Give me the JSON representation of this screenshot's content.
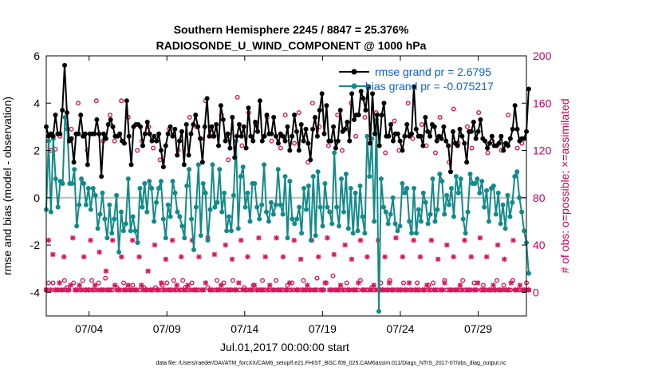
{
  "chart_data": {
    "type": "line",
    "title_line1": "Southern Hemisphere 2245 / 8847 = 25.376%",
    "title_line2": "RADIOSONDE_U_WIND_COMPONENT @ 1000 hPa",
    "ylabel_left": "rmse and bias (model - observation)",
    "ylabel_right": "# of obs: o=possible; ×=assimilated",
    "xlabel": "Jul.01,2017 00:00:00 start",
    "footnote": "data file: /Users/raeder/DAI/ATM_forcXX/CAM6_setup/f.e21.FHIST_BGC.f09_025.CAM6assim.011/Diags_NTrS_2017-07/obs_diag_output.nc",
    "x_tick_labels": [
      "07/04",
      "07/09",
      "07/14",
      "07/19",
      "07/24",
      "07/29"
    ],
    "x_tick_days": [
      4,
      9,
      14,
      19,
      24,
      29
    ],
    "xlim_days": [
      1.25,
      32.1
    ],
    "ylim_left": [
      -5,
      6
    ],
    "yticks_left": [
      -4,
      -2,
      0,
      2,
      4,
      6
    ],
    "ylim_right": [
      -20,
      200
    ],
    "yticks_right": [
      0,
      40,
      80,
      120,
      160,
      200
    ],
    "legend_position": "top-right",
    "colors": {
      "rmse": "#000000",
      "bias": "#138a8a",
      "obs": "#d6175e",
      "zero": "#bdbdbd"
    },
    "series": [
      {
        "name": "rmse grand pr = 2.6795",
        "axis": "left",
        "values": [
          3.0,
          2.6,
          2.7,
          2.6,
          3.5,
          2.7,
          2.7,
          3.7,
          5.6,
          3.6,
          2.4,
          2.5,
          1.5,
          2.7,
          2.7,
          3.5,
          2.6,
          2.7,
          1.4,
          2.7,
          2.7,
          2.7,
          3.3,
          2.7,
          0.9,
          2.7,
          2.5,
          3.1,
          3.3,
          3.0,
          2.6,
          2.6,
          2.7,
          2.4,
          2.3,
          4.1,
          2.6,
          1.4,
          3.0,
          3.1,
          3.1,
          3.0,
          2.2,
          2.7,
          3.2,
          2.7,
          2.4,
          2.6,
          2.4,
          2.7,
          2.0,
          1.3,
          2.2,
          2.7,
          3.0,
          2.6,
          2.9,
          1.8,
          2.4,
          2.8,
          1.4,
          3.1,
          1.8,
          2.7,
          3.1,
          3.5,
          3.0,
          2.5,
          1.5,
          3.0,
          4.2,
          2.6,
          3.0,
          2.6,
          3.1,
          2.2,
          3.9,
          3.3,
          2.4,
          2.7,
          2.1,
          3.4,
          1.7,
          2.6,
          3.1,
          2.6,
          3.0,
          2.1,
          3.8,
          2.6,
          2.4,
          3.2,
          2.8,
          4.1,
          2.4,
          2.6,
          3.5,
          2.7,
          2.7,
          3.4,
          2.6,
          2.3,
          2.7,
          2.6,
          2.4,
          3.0,
          2.0,
          2.6,
          3.5,
          2.8,
          2.0,
          3.1,
          2.4,
          2.9,
          2.3,
          1.6,
          2.9,
          3.4,
          2.6,
          3.7,
          4.4,
          2.7,
          3.9,
          2.4,
          2.4,
          3.0,
          2.1,
          2.4,
          3.7,
          2.8,
          2.9,
          3.2,
          2.4,
          4.4,
          3.3,
          3.5,
          3.5,
          4.5,
          4.2,
          3.7,
          4.7,
          2.3,
          4.4,
          2.7,
          3.5,
          2.2,
          3.5,
          4.0,
          2.6,
          2.6,
          3.1,
          2.4,
          2.7,
          2.7,
          2.4,
          2.0,
          2.6,
          3.1,
          2.6,
          2.7,
          4.7,
          2.9,
          2.6,
          2.6,
          2.2,
          3.4,
          2.8,
          2.6,
          3.1,
          3.0,
          2.4,
          2.6,
          2.5,
          3.0,
          2.4,
          2.2,
          1.1,
          2.8,
          2.3,
          2.2,
          2.9,
          2.6,
          2.3,
          1.5,
          2.8,
          2.8,
          3.2,
          2.5,
          2.8,
          3.3,
          2.5,
          2.4,
          2.1,
          2.3,
          2.6,
          2.2,
          2.2,
          2.3,
          2.6,
          2.0,
          2.3,
          2.2,
          2.5,
          2.9,
          3.9,
          2.9,
          2.4,
          2.5,
          2.5,
          2.8,
          4.6
        ]
      },
      {
        "name": "bias grand pr = -0.075217",
        "axis": "left",
        "values": [
          -0.5,
          2.4,
          -0.6,
          2.5,
          0.8,
          -0.4,
          0.7,
          0.6,
          3.4,
          2.9,
          0.6,
          0.6,
          1.2,
          -1.2,
          -0.3,
          0.8,
          0.6,
          -0.3,
          0.4,
          -0.5,
          0.4,
          0.1,
          -1.3,
          -0.7,
          0.2,
          -0.9,
          -1.7,
          -0.3,
          -1.5,
          -0.9,
          0.1,
          -2.3,
          -0.6,
          -1.4,
          -1.1,
          0.8,
          -1.4,
          -0.8,
          -1.4,
          -1.9,
          0.4,
          -0.4,
          0.6,
          -0.6,
          0.7,
          0.4,
          -1.0,
          -0.2,
          0.4,
          0.7,
          -0.9,
          -1.7,
          -0.3,
          -0.8,
          0.7,
          0.2,
          -0.6,
          -0.8,
          -1.2,
          -1.7,
          0.5,
          1.2,
          -0.9,
          -2.2,
          -0.4,
          1.4,
          -1.6,
          0.6,
          0.2,
          -1.8,
          -0.5,
          1.4,
          -0.4,
          -0.2,
          1.2,
          -0.6,
          0.2,
          -1.4,
          -0.8,
          -1.4,
          0.1,
          2.4,
          -1.3,
          0.9,
          1.3,
          -0.4,
          0.2,
          -1.0,
          0.6,
          0.6,
          -0.4,
          -0.9,
          -0.3,
          1.4,
          -0.6,
          -1.0,
          -0.2,
          -0.7,
          -0.3,
          1.2,
          -0.3,
          -0.7,
          0.9,
          -1.7,
          0.7,
          -0.9,
          -1.1,
          -0.9,
          -0.4,
          -1.5,
          0.4,
          -0.5,
          0.5,
          -1.8,
          0.9,
          -1.6,
          1.1,
          -0.4,
          -1.2,
          0.6,
          -0.4,
          -0.6,
          -1.1,
          1.9,
          -0.4,
          -1.2,
          0.8,
          -0.6,
          1.0,
          -1.3,
          0.4,
          -1.5,
          0.2,
          -1.4,
          0.5,
          -0.8,
          -1.5,
          2.6,
          0.9,
          2.5,
          -1.0,
          3.3,
          -4.8,
          0.8,
          -0.4,
          -0.6,
          -1.1,
          -0.7,
          0.0,
          -1.1,
          -1.4,
          -1.2,
          0.6,
          0.2,
          0.4,
          -1.0,
          -1.5,
          0.4,
          -1.5,
          -0.5,
          -1.0,
          0.2,
          -0.2,
          -1.1,
          -0.7,
          0.8,
          -1.0,
          -0.5,
          1.0,
          0.7,
          -0.7,
          0.1,
          -0.3,
          0.4,
          -0.8,
          0.9,
          0.2,
          0.8,
          -0.9,
          -1.5,
          -0.6,
          1.0,
          0.6,
          0.6,
          0.8,
          0.2,
          0.7,
          -0.4,
          0.3,
          -1.0,
          0.4,
          0.5,
          -0.7,
          0.2,
          -1.1,
          -0.3,
          -1.3,
          0.1,
          -0.8,
          -0.2,
          0.9,
          1.1,
          0.0,
          -0.6,
          -1.4,
          -1.9,
          -3.2
        ]
      },
      {
        "name": "possible",
        "axis": "right",
        "values": [
          2,
          8,
          120,
          8,
          121,
          2,
          132,
          2,
          10,
          4,
          2,
          138,
          8,
          2,
          160,
          2,
          10,
          2,
          120,
          2,
          10,
          2,
          162,
          8,
          2,
          128,
          12,
          2,
          150,
          2,
          128,
          4,
          2,
          162,
          8,
          2,
          148,
          2,
          6,
          2,
          120,
          2,
          128,
          4,
          2,
          140,
          2,
          122,
          4,
          2,
          112,
          6,
          2,
          8,
          138,
          2,
          10,
          2,
          120,
          2,
          10,
          4,
          2,
          148,
          8,
          2,
          140,
          2,
          130,
          2,
          162,
          4,
          2,
          132,
          2,
          10,
          2,
          150,
          8,
          2,
          112,
          2,
          10,
          2,
          165,
          2,
          124,
          4,
          2,
          152,
          2,
          6,
          142,
          2,
          2,
          10,
          2,
          148,
          2,
          128,
          2,
          10,
          2,
          122,
          2,
          150,
          6,
          2,
          8,
          126,
          2,
          152,
          2,
          10,
          2,
          110,
          2,
          160,
          2,
          12,
          140,
          2,
          2,
          8,
          124,
          2,
          14,
          2,
          150,
          2,
          120,
          2,
          8,
          2,
          160,
          2,
          132,
          2,
          10,
          2,
          148,
          2,
          128,
          4,
          2,
          152,
          2,
          8,
          2,
          118,
          2,
          10,
          2,
          145,
          2,
          120,
          2,
          8,
          2,
          160,
          2,
          130,
          2,
          8,
          2,
          142,
          2,
          124,
          6,
          2,
          8,
          118,
          2,
          148,
          2,
          10,
          2,
          110,
          2,
          155,
          2,
          126,
          2,
          10,
          2,
          140,
          2,
          122,
          8,
          2,
          152,
          2,
          6,
          2,
          118,
          2,
          128,
          2,
          10,
          2,
          120,
          6,
          2,
          150,
          2,
          10,
          2,
          122,
          2,
          126,
          2,
          8,
          2
        ]
      },
      {
        "name": "assimilated",
        "axis": "right",
        "values": [
          2,
          44,
          2,
          32,
          2,
          2,
          8,
          2,
          30,
          2,
          2,
          6,
          46,
          2,
          2,
          6,
          2,
          30,
          2,
          2,
          44,
          2,
          6,
          2,
          34,
          2,
          2,
          18,
          2,
          2,
          44,
          6,
          2,
          2,
          30,
          2,
          2,
          6,
          2,
          44,
          2,
          2,
          30,
          6,
          2,
          2,
          18,
          2,
          2,
          40,
          2,
          2,
          8,
          2,
          28,
          2,
          2,
          44,
          2,
          6,
          2,
          30,
          2,
          2,
          6,
          2,
          44,
          2,
          2,
          30,
          2,
          2,
          8,
          46,
          2,
          2,
          32,
          2,
          2,
          6,
          2,
          40,
          2,
          2,
          28,
          2,
          2,
          8,
          44,
          2,
          2,
          30,
          2,
          2,
          6,
          2,
          46,
          2,
          2,
          30,
          2,
          6,
          2,
          2,
          46,
          2,
          2,
          30,
          2,
          2,
          8,
          2,
          44,
          2,
          2,
          28,
          2,
          2,
          6,
          2,
          44,
          2,
          2,
          30,
          2,
          2,
          8,
          46,
          2,
          2,
          32,
          2,
          2,
          6,
          2,
          40,
          2,
          2,
          28,
          2,
          2,
          8,
          44,
          2,
          2,
          30,
          2,
          2,
          6,
          2,
          44,
          2,
          2,
          30,
          2,
          8,
          2,
          2,
          46,
          2,
          2,
          30,
          2,
          2,
          8,
          2,
          44,
          2,
          2,
          30,
          2,
          2,
          6,
          2,
          44,
          2,
          2,
          28,
          2,
          2,
          8,
          40,
          2,
          2,
          30,
          2,
          2,
          6,
          2,
          44,
          2,
          2,
          30,
          2,
          2,
          8,
          46,
          2,
          2,
          30,
          2,
          2,
          6,
          2,
          40,
          2,
          2,
          28,
          2,
          2,
          8,
          44,
          2,
          2,
          6,
          2,
          2,
          2,
          2
        ]
      }
    ]
  }
}
